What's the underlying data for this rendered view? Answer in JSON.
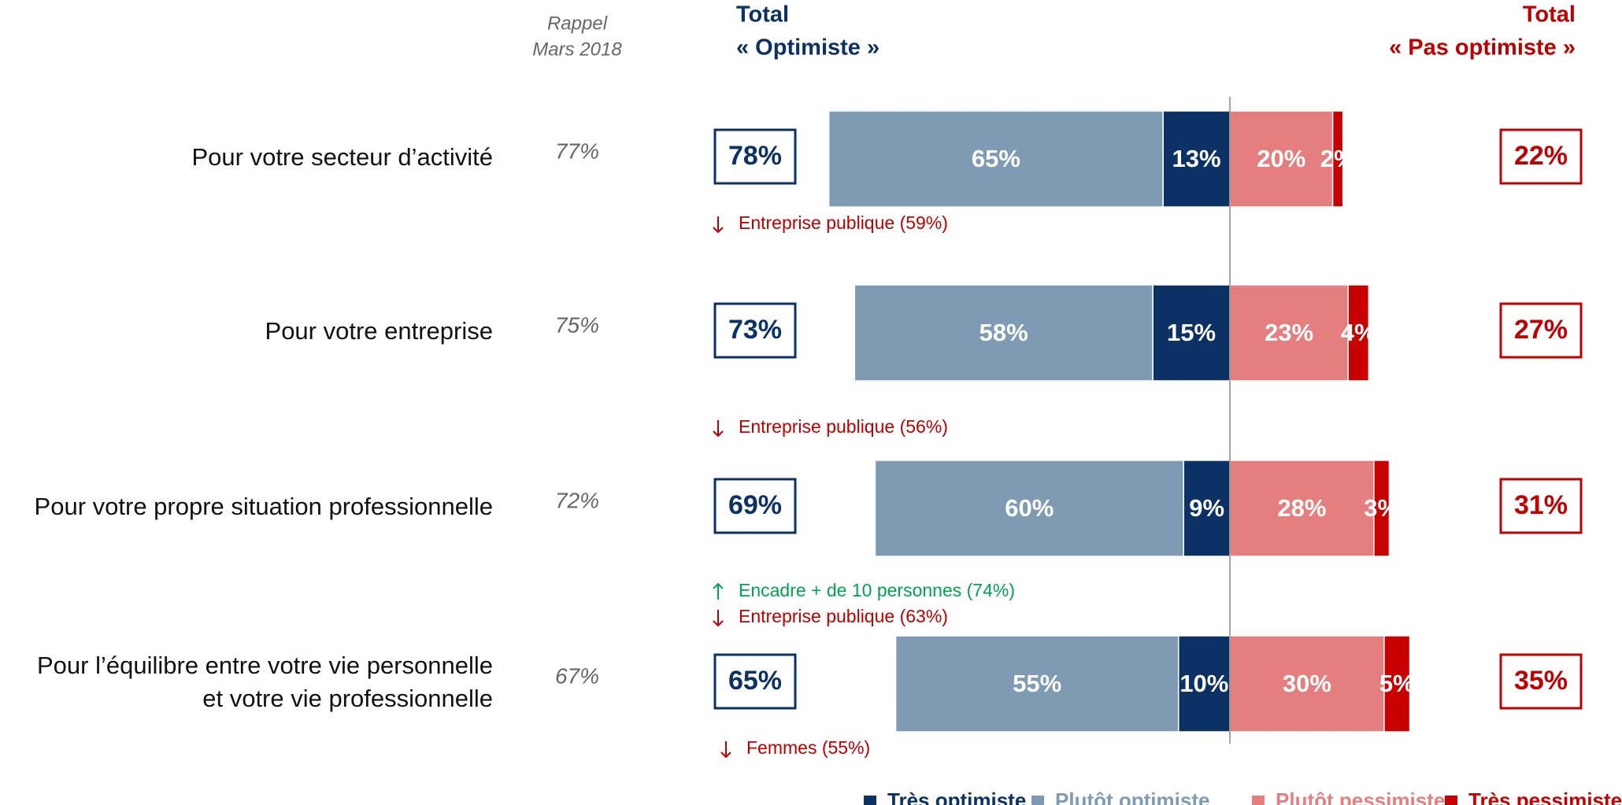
{
  "chart_data": {
    "type": "diverging_bar",
    "header": {
      "recall": [
        "Rappel",
        "Mars 2018"
      ],
      "total_left": [
        "Total",
        "« Optimiste »"
      ],
      "total_right": [
        "Total",
        "« Pas optimiste »"
      ]
    },
    "categories": [
      [
        "Pour votre secteur d’activité"
      ],
      [
        "Pour votre entreprise"
      ],
      [
        "Pour votre propre situation professionnelle"
      ],
      [
        "Pour l’équilibre entre votre vie personnelle",
        "et votre vie professionnelle"
      ]
    ],
    "series": [
      {
        "name": "Très optimiste",
        "color": "#0b3165",
        "side": "left",
        "values": [
          13,
          15,
          9,
          10
        ],
        "value_labels": [
          "13%",
          "15%",
          "9%",
          "10%"
        ]
      },
      {
        "name": "Plutôt optimiste",
        "color": "#7f9ab3",
        "side": "left",
        "values": [
          65,
          58,
          60,
          55
        ],
        "value_labels": [
          "65%",
          "58%",
          "60%",
          "55%"
        ]
      },
      {
        "name": "Plutôt pessimiste",
        "color": "#e57f7f",
        "side": "right",
        "values": [
          20,
          23,
          28,
          30
        ],
        "value_labels": [
          "20%",
          "23%",
          "28%",
          "30%"
        ]
      },
      {
        "name": "Très pessimiste",
        "color": "#c80000",
        "side": "right",
        "values": [
          2,
          4,
          3,
          5
        ],
        "value_labels": [
          "2%",
          "4%",
          "3%",
          "5%"
        ]
      }
    ],
    "total_left": {
      "color": "#0b3165",
      "values": [
        78,
        73,
        69,
        65
      ],
      "value_labels": [
        "78%",
        "73%",
        "69%",
        "65%"
      ]
    },
    "total_right": {
      "color": "#c00000",
      "values": [
        22,
        27,
        31,
        35
      ],
      "value_labels": [
        "22%",
        "27%",
        "31%",
        "35%"
      ]
    },
    "recall": {
      "values": [
        77,
        75,
        72,
        67
      ],
      "value_labels": [
        "77%",
        "75%",
        "72%",
        "67%"
      ]
    },
    "annotations": [
      [
        {
          "direction": "down",
          "text": "Entreprise publique (59%)"
        }
      ],
      [
        {
          "direction": "down",
          "text": "Entreprise publique (56%)"
        }
      ],
      [
        {
          "direction": "up",
          "text": "Encadre + de 10 personnes (74%)"
        },
        {
          "direction": "down",
          "text": "Entreprise publique (63%)"
        }
      ],
      [
        {
          "direction": "down",
          "text": "Femmes (55%)"
        }
      ]
    ]
  }
}
